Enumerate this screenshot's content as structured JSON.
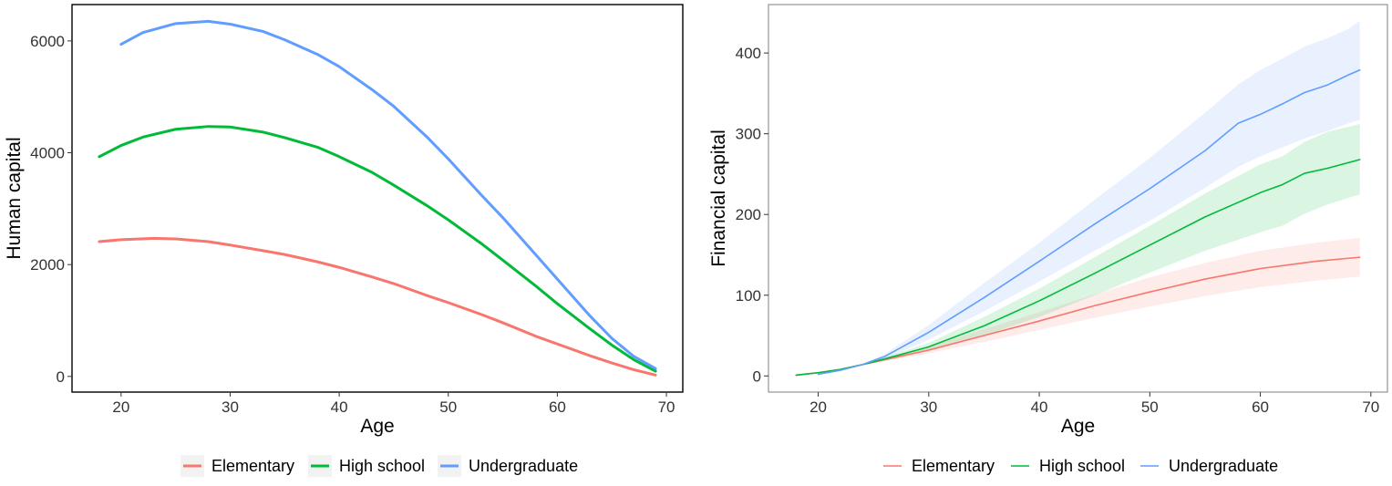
{
  "chart_data": [
    {
      "type": "line",
      "xlabel": "Age",
      "ylabel": "Human capital",
      "xlim": [
        15.5,
        71.5
      ],
      "ylim": [
        -280,
        6650
      ],
      "xticks": [
        20,
        30,
        40,
        50,
        60,
        70
      ],
      "yticks": [
        0,
        2000,
        4000,
        6000
      ],
      "grid": false,
      "border": true,
      "legend": "bottom",
      "series": [
        {
          "name": "Elementary",
          "color": "#F8766D",
          "x": [
            18,
            20,
            23,
            25,
            28,
            30,
            33,
            35,
            38,
            40,
            43,
            45,
            48,
            50,
            53,
            55,
            58,
            60,
            63,
            65,
            67,
            69
          ],
          "y": [
            2410,
            2445,
            2470,
            2460,
            2410,
            2350,
            2250,
            2180,
            2050,
            1950,
            1780,
            1660,
            1450,
            1320,
            1110,
            960,
            720,
            580,
            370,
            240,
            120,
            25
          ]
        },
        {
          "name": "High school",
          "color": "#00BA38",
          "x": [
            18,
            20,
            22,
            25,
            28,
            30,
            33,
            35,
            38,
            40,
            43,
            45,
            48,
            50,
            53,
            55,
            58,
            60,
            63,
            65,
            67,
            69
          ],
          "y": [
            3930,
            4130,
            4280,
            4420,
            4470,
            4460,
            4370,
            4270,
            4100,
            3930,
            3650,
            3420,
            3060,
            2800,
            2380,
            2080,
            1620,
            1300,
            850,
            560,
            300,
            95
          ]
        },
        {
          "name": "Undergraduate",
          "color": "#619CFF",
          "x": [
            20,
            22,
            25,
            28,
            30,
            33,
            35,
            38,
            40,
            43,
            45,
            48,
            50,
            53,
            55,
            58,
            60,
            63,
            65,
            67,
            69
          ],
          "y": [
            5940,
            6150,
            6310,
            6350,
            6300,
            6170,
            6020,
            5760,
            5540,
            5130,
            4830,
            4290,
            3890,
            3250,
            2840,
            2180,
            1740,
            1080,
            680,
            360,
            140
          ]
        }
      ]
    },
    {
      "type": "area",
      "xlabel": "Age",
      "ylabel": "Financial capital",
      "xlim": [
        15.5,
        71.5
      ],
      "ylim": [
        -20,
        460
      ],
      "xticks": [
        20,
        30,
        40,
        50,
        60,
        70
      ],
      "yticks": [
        0,
        100,
        200,
        300,
        400
      ],
      "grid": false,
      "border": true,
      "legend": "bottom",
      "series": [
        {
          "name": "Elementary",
          "color": "#F8766D",
          "x": [
            18,
            20,
            22,
            24,
            26,
            30,
            35,
            40,
            45,
            50,
            55,
            60,
            65,
            69
          ],
          "y": [
            1,
            4,
            8,
            14,
            20,
            32,
            50,
            68,
            87,
            104,
            120,
            133,
            142,
            147
          ],
          "lower": [
            1,
            4,
            8,
            13,
            18,
            28,
            42,
            57,
            72,
            86,
            99,
            110,
            118,
            123
          ],
          "upper": [
            1,
            4,
            8,
            15,
            22,
            36,
            58,
            79,
            101,
            122,
            140,
            155,
            165,
            171
          ]
        },
        {
          "name": "High school",
          "color": "#00BA38",
          "x": [
            18,
            20,
            22,
            24,
            26,
            30,
            35,
            40,
            45,
            50,
            55,
            60,
            62,
            64,
            66,
            69
          ],
          "y": [
            1,
            4,
            8,
            14,
            21,
            36,
            62,
            93,
            127,
            162,
            197,
            227,
            237,
            251,
            257,
            268
          ],
          "lower": [
            1,
            4,
            8,
            13,
            19,
            31,
            50,
            73,
            100,
            128,
            155,
            178,
            186,
            201,
            212,
            225
          ],
          "upper": [
            1,
            4,
            8,
            15,
            23,
            41,
            73,
            108,
            147,
            186,
            226,
            262,
            272,
            290,
            302,
            312
          ]
        },
        {
          "name": "Undergraduate",
          "color": "#619CFF",
          "x": [
            20,
            22,
            24,
            26,
            30,
            35,
            40,
            45,
            50,
            55,
            58,
            60,
            62,
            64,
            66,
            68,
            69
          ],
          "y": [
            2,
            7,
            14,
            24,
            54,
            97,
            142,
            188,
            232,
            279,
            313,
            324,
            337,
            351,
            360,
            373,
            379
          ],
          "lower": [
            2,
            7,
            13,
            21,
            45,
            80,
            117,
            155,
            192,
            233,
            259,
            272,
            283,
            294,
            303,
            313,
            317
          ],
          "upper": [
            2,
            7,
            15,
            27,
            63,
            115,
            165,
            218,
            270,
            326,
            361,
            379,
            393,
            408,
            418,
            430,
            440
          ]
        }
      ]
    }
  ]
}
